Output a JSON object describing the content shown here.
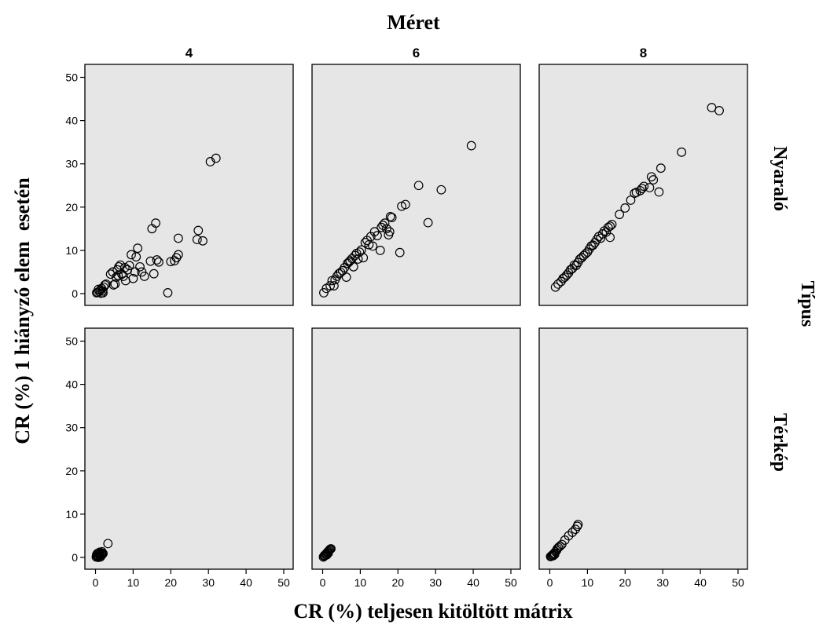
{
  "chart_data": {
    "type": "scatter",
    "title": "Méret",
    "xlabel": "CR (%) teljesen kitöltött mátrix",
    "ylabel": "CR (%) 1 hiányzó elem  esetén",
    "column_facet_label": "Méret",
    "column_facets": [
      "4",
      "6",
      "8"
    ],
    "row_facet_label": "Típus",
    "row_facets": [
      "Nyaraló",
      "Térkép"
    ],
    "xlim": [
      0,
      52
    ],
    "ylim": [
      0,
      52
    ],
    "x_ticks": [
      0,
      10,
      20,
      30,
      40,
      50
    ],
    "y_ticks": [
      0,
      10,
      20,
      30,
      40,
      50
    ],
    "grid": false,
    "marker": "open-circle",
    "colors": {
      "panel_bg": "#e6e6e6",
      "marker": "#000000",
      "axis": "#000000"
    },
    "panels": [
      {
        "row": "Nyaraló",
        "col": "4",
        "points": [
          [
            0.3,
            0.2
          ],
          [
            0.6,
            0.3
          ],
          [
            1.0,
            0.5
          ],
          [
            1.3,
            0.8
          ],
          [
            1.6,
            1.2
          ],
          [
            1.9,
            0.6
          ],
          [
            2.2,
            1.5
          ],
          [
            2.5,
            2.0
          ],
          [
            2.8,
            2.2
          ],
          [
            1.5,
            0.1
          ],
          [
            2.0,
            0.2
          ],
          [
            0.8,
            1.0
          ],
          [
            4.0,
            4.5
          ],
          [
            4.6,
            5.0
          ],
          [
            5.2,
            2.2
          ],
          [
            4.8,
            2.0
          ],
          [
            5.8,
            5.5
          ],
          [
            6.2,
            6.2
          ],
          [
            6.6,
            6.6
          ],
          [
            7.0,
            4.5
          ],
          [
            7.4,
            4.0
          ],
          [
            7.8,
            6.0
          ],
          [
            5.5,
            3.8
          ],
          [
            6.0,
            4.2
          ],
          [
            8.0,
            3.0
          ],
          [
            8.5,
            5.5
          ],
          [
            9.0,
            6.5
          ],
          [
            9.5,
            9.0
          ],
          [
            10.0,
            3.5
          ],
          [
            10.5,
            5.0
          ],
          [
            10.8,
            8.5
          ],
          [
            11.2,
            10.5
          ],
          [
            11.8,
            6.2
          ],
          [
            12.3,
            5.0
          ],
          [
            13.0,
            4.0
          ],
          [
            14.6,
            7.5
          ],
          [
            15.0,
            15.0
          ],
          [
            15.5,
            4.6
          ],
          [
            16.0,
            16.3
          ],
          [
            16.3,
            7.8
          ],
          [
            16.8,
            7.3
          ],
          [
            19.2,
            0.2
          ],
          [
            20.0,
            7.4
          ],
          [
            21.0,
            7.6
          ],
          [
            21.5,
            8.3
          ],
          [
            22.0,
            9.0
          ],
          [
            22.0,
            12.8
          ],
          [
            27.0,
            12.5
          ],
          [
            27.3,
            14.6
          ],
          [
            28.5,
            12.2
          ],
          [
            30.5,
            30.5
          ],
          [
            32.0,
            31.3
          ]
        ]
      },
      {
        "row": "Nyaraló",
        "col": "6",
        "points": [
          [
            0.3,
            0.2
          ],
          [
            1.0,
            1.2
          ],
          [
            2.0,
            1.8
          ],
          [
            2.5,
            3.0
          ],
          [
            3.0,
            1.8
          ],
          [
            3.3,
            3.2
          ],
          [
            3.8,
            4.0
          ],
          [
            4.3,
            4.6
          ],
          [
            4.8,
            4.9
          ],
          [
            5.3,
            5.3
          ],
          [
            5.8,
            6.0
          ],
          [
            6.3,
            3.8
          ],
          [
            6.6,
            7.0
          ],
          [
            7.0,
            7.3
          ],
          [
            7.3,
            7.6
          ],
          [
            7.8,
            8.1
          ],
          [
            8.2,
            6.2
          ],
          [
            8.6,
            8.8
          ],
          [
            9.0,
            9.3
          ],
          [
            9.4,
            8.0
          ],
          [
            9.8,
            9.6
          ],
          [
            10.3,
            10.1
          ],
          [
            10.8,
            8.3
          ],
          [
            11.3,
            11.8
          ],
          [
            11.8,
            12.3
          ],
          [
            12.3,
            11.3
          ],
          [
            12.8,
            13.2
          ],
          [
            13.3,
            11.0
          ],
          [
            13.8,
            14.3
          ],
          [
            14.5,
            13.4
          ],
          [
            15.3,
            10.0
          ],
          [
            15.6,
            15.3
          ],
          [
            16.0,
            15.8
          ],
          [
            16.5,
            16.3
          ],
          [
            17.0,
            15.0
          ],
          [
            17.5,
            13.6
          ],
          [
            17.8,
            14.3
          ],
          [
            18.0,
            17.8
          ],
          [
            18.4,
            17.6
          ],
          [
            20.5,
            9.5
          ],
          [
            21.0,
            20.2
          ],
          [
            22.0,
            20.6
          ],
          [
            25.5,
            25.0
          ],
          [
            28.0,
            16.4
          ],
          [
            31.5,
            24.0
          ],
          [
            39.5,
            34.2
          ]
        ]
      },
      {
        "row": "Nyaraló",
        "col": "8",
        "points": [
          [
            1.5,
            1.5
          ],
          [
            2.2,
            2.2
          ],
          [
            3.0,
            2.8
          ],
          [
            3.5,
            3.5
          ],
          [
            4.0,
            3.8
          ],
          [
            4.5,
            4.3
          ],
          [
            5.0,
            4.8
          ],
          [
            5.5,
            5.5
          ],
          [
            6.0,
            5.8
          ],
          [
            6.5,
            6.6
          ],
          [
            7.0,
            6.5
          ],
          [
            7.5,
            7.2
          ],
          [
            8.0,
            8.0
          ],
          [
            8.5,
            8.3
          ],
          [
            9.0,
            8.8
          ],
          [
            9.5,
            9.2
          ],
          [
            10.0,
            9.6
          ],
          [
            10.5,
            10.3
          ],
          [
            11.0,
            11.0
          ],
          [
            11.5,
            11.2
          ],
          [
            12.0,
            11.8
          ],
          [
            12.5,
            12.5
          ],
          [
            13.0,
            13.2
          ],
          [
            13.5,
            12.8
          ],
          [
            14.0,
            13.8
          ],
          [
            14.5,
            14.5
          ],
          [
            15.0,
            14.2
          ],
          [
            15.5,
            15.3
          ],
          [
            16.0,
            13.0
          ],
          [
            16.0,
            15.6
          ],
          [
            16.5,
            16.0
          ],
          [
            18.5,
            18.3
          ],
          [
            20.0,
            19.8
          ],
          [
            21.5,
            21.6
          ],
          [
            22.5,
            23.2
          ],
          [
            23.0,
            23.4
          ],
          [
            24.0,
            23.8
          ],
          [
            24.5,
            24.3
          ],
          [
            25.0,
            24.8
          ],
          [
            26.5,
            24.5
          ],
          [
            27.0,
            27.0
          ],
          [
            27.5,
            26.3
          ],
          [
            29.0,
            23.5
          ],
          [
            29.5,
            29.0
          ],
          [
            35.0,
            32.7
          ],
          [
            43.0,
            43.0
          ],
          [
            45.0,
            42.3
          ]
        ]
      },
      {
        "row": "Térkép",
        "col": "4",
        "points": [
          [
            0.2,
            0.1
          ],
          [
            0.4,
            0.3
          ],
          [
            0.6,
            0.5
          ],
          [
            0.8,
            0.2
          ],
          [
            1.0,
            0.6
          ],
          [
            1.2,
            0.4
          ],
          [
            1.4,
            0.8
          ],
          [
            1.6,
            0.5
          ],
          [
            0.3,
            0.6
          ],
          [
            0.5,
            0.9
          ],
          [
            0.9,
            1.0
          ],
          [
            1.1,
            1.2
          ],
          [
            1.5,
            1.0
          ],
          [
            1.8,
            0.7
          ],
          [
            2.0,
            0.9
          ],
          [
            0.7,
            0.0
          ],
          [
            1.3,
            0.1
          ],
          [
            1.7,
            1.3
          ],
          [
            3.3,
            3.2
          ]
        ]
      },
      {
        "row": "Térkép",
        "col": "6",
        "points": [
          [
            0.2,
            0.1
          ],
          [
            0.4,
            0.3
          ],
          [
            0.6,
            0.4
          ],
          [
            0.8,
            0.7
          ],
          [
            1.0,
            0.9
          ],
          [
            1.2,
            1.1
          ],
          [
            1.4,
            1.3
          ],
          [
            1.6,
            1.5
          ],
          [
            1.8,
            1.7
          ],
          [
            2.0,
            1.9
          ],
          [
            2.2,
            2.0
          ],
          [
            0.5,
            0.5
          ],
          [
            1.1,
            0.6
          ],
          [
            1.5,
            1.0
          ]
        ]
      },
      {
        "row": "Térkép",
        "col": "8",
        "points": [
          [
            0.2,
            0.2
          ],
          [
            0.4,
            0.3
          ],
          [
            0.6,
            0.5
          ],
          [
            0.8,
            0.6
          ],
          [
            1.0,
            0.8
          ],
          [
            1.2,
            1.0
          ],
          [
            1.5,
            1.3
          ],
          [
            1.8,
            1.6
          ],
          [
            2.0,
            2.0
          ],
          [
            2.3,
            2.3
          ],
          [
            2.7,
            2.6
          ],
          [
            3.2,
            3.0
          ],
          [
            4.0,
            4.0
          ],
          [
            5.0,
            5.0
          ],
          [
            6.0,
            5.8
          ],
          [
            6.8,
            6.5
          ],
          [
            7.3,
            7.2
          ],
          [
            7.5,
            7.6
          ],
          [
            0.9,
            0.4
          ],
          [
            1.3,
            0.7
          ]
        ]
      }
    ]
  }
}
